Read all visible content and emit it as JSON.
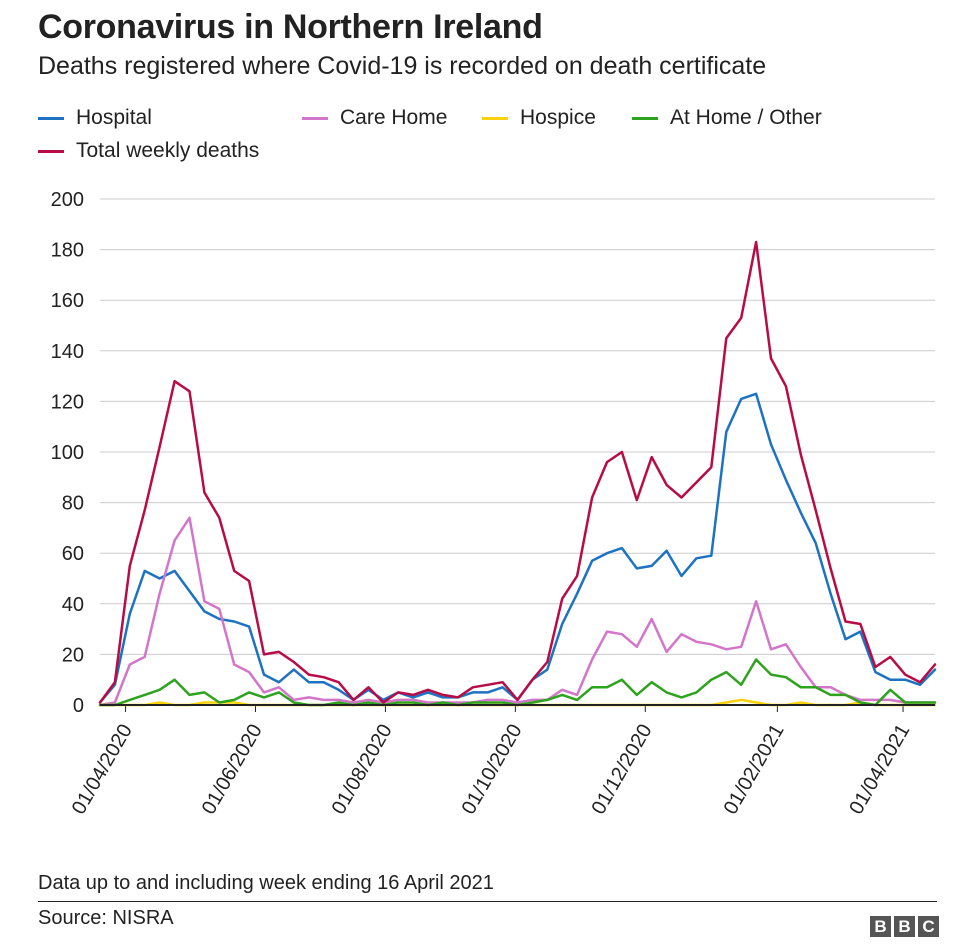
{
  "title": "Coronavirus in Northern Ireland",
  "subtitle": "Deaths registered where Covid-19 is recorded on death certificate",
  "footnote": "Data up to and including week ending 16 April 2021",
  "source": "Source: NISRA",
  "logo": [
    "B",
    "B",
    "C"
  ],
  "chart_data": {
    "type": "line",
    "title": "Coronavirus in Northern Ireland",
    "subtitle": "Deaths registered where Covid-19 is recorded on death certificate",
    "xlabel": "",
    "ylabel": "",
    "ylim": [
      0,
      200
    ],
    "yticks": [
      0,
      20,
      40,
      60,
      80,
      100,
      120,
      140,
      160,
      180,
      200
    ],
    "xlim": [
      "2020-03-20",
      "2021-04-16"
    ],
    "xticks": [
      "2020-04-01",
      "2020-06-01",
      "2020-08-01",
      "2020-10-01",
      "2020-12-01",
      "2021-02-01",
      "2021-04-01"
    ],
    "xtick_labels": [
      "01/04/2020",
      "01/06/2020",
      "01/08/2020",
      "01/10/2020",
      "01/12/2020",
      "01/02/2021",
      "01/04/2021"
    ],
    "grid": "horizontal",
    "legend_position": "top",
    "x": [
      "2020-03-20",
      "2020-03-27",
      "2020-04-03",
      "2020-04-10",
      "2020-04-17",
      "2020-04-24",
      "2020-05-01",
      "2020-05-08",
      "2020-05-15",
      "2020-05-22",
      "2020-05-29",
      "2020-06-05",
      "2020-06-12",
      "2020-06-19",
      "2020-06-26",
      "2020-07-03",
      "2020-07-10",
      "2020-07-17",
      "2020-07-24",
      "2020-07-31",
      "2020-08-07",
      "2020-08-14",
      "2020-08-21",
      "2020-08-28",
      "2020-09-04",
      "2020-09-11",
      "2020-09-18",
      "2020-09-25",
      "2020-10-02",
      "2020-10-09",
      "2020-10-16",
      "2020-10-23",
      "2020-10-30",
      "2020-11-06",
      "2020-11-13",
      "2020-11-20",
      "2020-11-27",
      "2020-12-04",
      "2020-12-11",
      "2020-12-18",
      "2020-12-25",
      "2021-01-01",
      "2021-01-08",
      "2021-01-15",
      "2021-01-22",
      "2021-01-29",
      "2021-02-05",
      "2021-02-12",
      "2021-02-19",
      "2021-02-26",
      "2021-03-05",
      "2021-03-12",
      "2021-03-19",
      "2021-03-26",
      "2021-04-02",
      "2021-04-09",
      "2021-04-16"
    ],
    "series": [
      {
        "name": "Hospital",
        "color": "#1d72c2",
        "values": [
          1,
          8,
          36,
          53,
          50,
          53,
          45,
          37,
          34,
          33,
          31,
          12,
          9,
          14,
          9,
          9,
          6,
          2,
          6,
          2,
          5,
          3,
          5,
          3,
          3,
          5,
          5,
          7,
          2,
          10,
          14,
          32,
          44,
          57,
          60,
          62,
          54,
          55,
          61,
          51,
          58,
          59,
          108,
          121,
          123,
          103,
          89,
          76,
          64,
          44,
          26,
          29,
          13,
          10,
          10,
          8,
          14
        ]
      },
      {
        "name": "Care Home",
        "color": "#d376c9",
        "values": [
          0,
          1,
          16,
          19,
          44,
          65,
          74,
          41,
          38,
          16,
          13,
          5,
          7,
          2,
          3,
          2,
          2,
          1,
          2,
          1,
          2,
          2,
          1,
          1,
          1,
          1,
          2,
          2,
          1,
          2,
          2,
          6,
          4,
          18,
          29,
          28,
          23,
          34,
          21,
          28,
          25,
          24,
          22,
          23,
          41,
          22,
          24,
          15,
          7,
          7,
          4,
          2,
          2,
          2,
          1,
          1,
          1
        ]
      },
      {
        "name": "Hospice",
        "color": "#fad20a",
        "values": [
          0,
          0,
          0,
          0,
          1,
          0,
          0,
          1,
          1,
          1,
          0,
          0,
          0,
          0,
          0,
          0,
          0,
          0,
          0,
          0,
          0,
          0,
          0,
          0,
          0,
          0,
          0,
          0,
          0,
          0,
          0,
          0,
          0,
          0,
          0,
          0,
          0,
          0,
          0,
          0,
          0,
          0,
          1,
          2,
          1,
          0,
          0,
          1,
          0,
          0,
          0,
          1,
          0,
          0,
          0,
          0,
          0
        ]
      },
      {
        "name": "At Home / Other",
        "color": "#2ea31e",
        "values": [
          0,
          0,
          2,
          4,
          6,
          10,
          4,
          5,
          1,
          2,
          5,
          3,
          5,
          1,
          0,
          0,
          1,
          0,
          1,
          0,
          1,
          1,
          0,
          1,
          0,
          1,
          1,
          1,
          0,
          1,
          2,
          4,
          2,
          7,
          7,
          10,
          4,
          9,
          5,
          3,
          5,
          10,
          13,
          8,
          18,
          12,
          11,
          7,
          7,
          4,
          4,
          1,
          0,
          6,
          1,
          1,
          1
        ]
      },
      {
        "name": "Total weekly deaths",
        "color": "#b80c47",
        "values": [
          1,
          9,
          55,
          77,
          102,
          128,
          124,
          84,
          74,
          53,
          49,
          20,
          21,
          17,
          12,
          11,
          9,
          2,
          7,
          1,
          5,
          4,
          6,
          4,
          3,
          7,
          8,
          9,
          2,
          10,
          17,
          42,
          51,
          82,
          96,
          100,
          81,
          98,
          87,
          82,
          88,
          94,
          145,
          153,
          183,
          137,
          126,
          99,
          77,
          54,
          33,
          32,
          15,
          19,
          12,
          9,
          16
        ]
      }
    ]
  }
}
